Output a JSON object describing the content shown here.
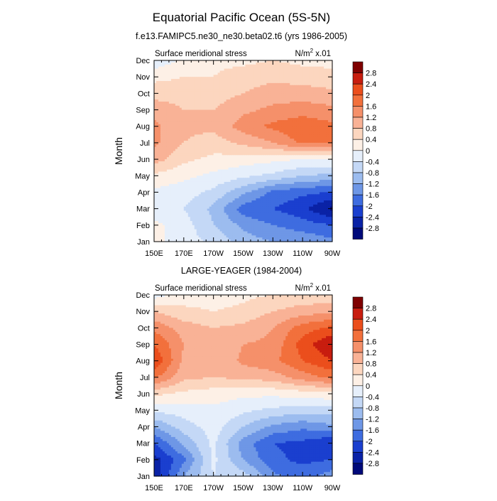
{
  "figure": {
    "title": "Equatorial Pacific Ocean (5S-5N)"
  },
  "colorbar": {
    "labels": [
      "2.8",
      "2.4",
      "2",
      "1.6",
      "1.2",
      "0.8",
      "0.4",
      "0",
      "-0.4",
      "-0.8",
      "-1.2",
      "-1.6",
      "-2",
      "-2.4",
      "-2.8"
    ],
    "colors": [
      "#7f0000",
      "#c81d0f",
      "#eb4e1c",
      "#f2703c",
      "#f5906a",
      "#f9b296",
      "#fcd6bf",
      "#fdf0e6",
      "#e6effb",
      "#c4d8f6",
      "#9cbcef",
      "#6e97e6",
      "#3e6ce0",
      "#1a3fcf",
      "#0a22a6",
      "#000a7a"
    ]
  },
  "chart_data": [
    {
      "type": "heatmap",
      "title": "f.e13.FAMIPC5.ne30_ne30.beta02.t6 (yrs 1986-2005)",
      "left_string": "Surface meridional stress",
      "right_string_base": "N/m",
      "right_string_exp": "2",
      "right_string_tail": " x.01",
      "ylabel": "Month",
      "x_ticks": [
        "150E",
        "170E",
        "170W",
        "150W",
        "130W",
        "110W",
        "90W"
      ],
      "y_ticks": [
        "Jan",
        "Feb",
        "Mar",
        "Apr",
        "May",
        "Jun",
        "Jul",
        "Aug",
        "Sep",
        "Oct",
        "Nov",
        "Dec"
      ],
      "xlim": [
        150,
        270
      ],
      "ylim": [
        1,
        12
      ],
      "contour_levels": [
        -2.8,
        -2.4,
        -2,
        -1.6,
        -1.2,
        -0.8,
        -0.4,
        0,
        0.4,
        0.8,
        1.2,
        1.6,
        2,
        2.4,
        2.8
      ],
      "x_nodes": [
        150,
        170,
        190,
        210,
        230,
        250,
        270
      ],
      "values_by_month": [
        [
          0.1,
          -0.2,
          -0.5,
          -1.0,
          -1.2,
          -1.3,
          -1.5
        ],
        [
          0.1,
          -0.2,
          -0.8,
          -1.3,
          -1.6,
          -1.8,
          -2.0
        ],
        [
          -0.2,
          -0.4,
          -0.9,
          -1.8,
          -2.0,
          -2.3,
          -2.9
        ],
        [
          -0.1,
          -0.2,
          -0.5,
          -1.1,
          -1.7,
          -1.9,
          -2.0
        ],
        [
          0.3,
          0.1,
          -0.1,
          -0.3,
          -0.5,
          -0.8,
          -0.9
        ],
        [
          1.0,
          0.5,
          0.3,
          0.2,
          0.1,
          0.0,
          0.0
        ],
        [
          1.3,
          0.8,
          0.6,
          0.9,
          1.2,
          1.7,
          1.6
        ],
        [
          1.3,
          0.9,
          0.9,
          1.4,
          1.7,
          1.9,
          1.7
        ],
        [
          1.1,
          0.8,
          0.8,
          1.1,
          1.3,
          1.4,
          1.3
        ],
        [
          0.6,
          0.6,
          0.6,
          0.8,
          1.0,
          1.0,
          0.9
        ],
        [
          0.3,
          0.4,
          0.4,
          0.6,
          0.7,
          0.6,
          0.5
        ],
        [
          -0.3,
          0.1,
          0.3,
          0.3,
          0.4,
          0.3,
          0.3
        ]
      ]
    },
    {
      "type": "heatmap",
      "title": "LARGE-YEAGER (1984-2004)",
      "left_string": "Surface meridional stress",
      "right_string_base": "N/m",
      "right_string_exp": "2",
      "right_string_tail": " x.01",
      "ylabel": "Month",
      "x_ticks": [
        "150E",
        "170E",
        "170W",
        "150W",
        "130W",
        "110W",
        "90W"
      ],
      "y_ticks": [
        "Jan",
        "Feb",
        "Mar",
        "Apr",
        "May",
        "Jun",
        "Jul",
        "Aug",
        "Sep",
        "Oct",
        "Nov",
        "Dec"
      ],
      "xlim": [
        150,
        270
      ],
      "ylim": [
        1,
        12
      ],
      "contour_levels": [
        -2.8,
        -2.4,
        -2,
        -1.6,
        -1.2,
        -0.8,
        -0.4,
        0,
        0.4,
        0.8,
        1.2,
        1.6,
        2,
        2.4,
        2.8
      ],
      "x_nodes": [
        150,
        170,
        190,
        210,
        230,
        250,
        270
      ],
      "values_by_month": [
        [
          -2.8,
          -1.2,
          -0.4,
          -0.6,
          -1.5,
          -1.8,
          -1.4
        ],
        [
          -2.6,
          -1.7,
          -0.3,
          -1.2,
          -1.9,
          -2.1,
          -2.0
        ],
        [
          -2.0,
          -1.1,
          -0.3,
          -1.4,
          -2.0,
          -2.1,
          -2.4
        ],
        [
          -1.2,
          -0.6,
          -0.2,
          -0.8,
          -1.3,
          -1.5,
          -1.3
        ],
        [
          -0.3,
          -0.2,
          -0.1,
          -0.3,
          -0.5,
          -0.6,
          -0.6
        ],
        [
          0.5,
          0.3,
          0.2,
          0.1,
          0.1,
          0.2,
          0.3
        ],
        [
          1.7,
          0.9,
          0.8,
          0.9,
          1.0,
          1.4,
          1.7
        ],
        [
          2.4,
          1.1,
          0.8,
          1.3,
          1.5,
          2.0,
          2.4
        ],
        [
          2.0,
          1.2,
          0.8,
          1.2,
          1.3,
          2.2,
          2.8
        ],
        [
          1.5,
          1.0,
          0.8,
          0.9,
          1.2,
          1.8,
          2.1
        ],
        [
          0.8,
          0.5,
          0.4,
          0.5,
          0.8,
          1.0,
          1.1
        ],
        [
          -0.2,
          0.2,
          0.2,
          0.3,
          0.4,
          0.5,
          0.5
        ]
      ]
    }
  ]
}
